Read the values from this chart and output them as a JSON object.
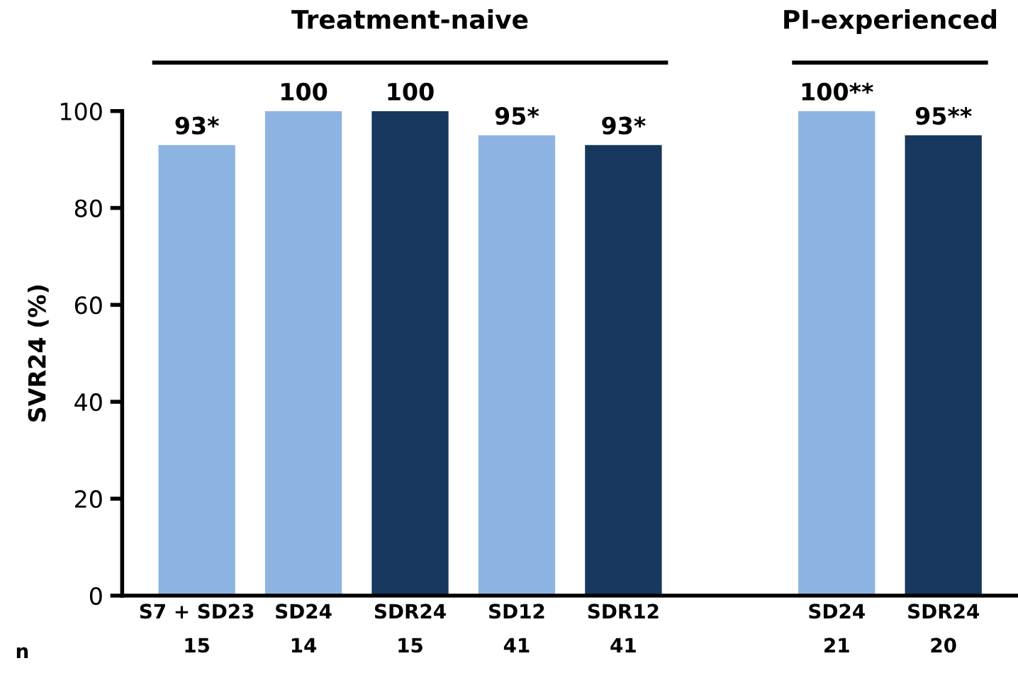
{
  "chart_data": {
    "type": "bar",
    "ylabel": "SVR24 (%)",
    "ylim": [
      0,
      100
    ],
    "yticks": [
      0,
      20,
      40,
      60,
      80,
      100
    ],
    "categories": [
      "S7 + SD23\n15",
      "SD24\n14",
      "SDR24\n15",
      "SD12\n41",
      "SDR12\n41",
      null,
      "SD24\n21",
      "SDR24\n20"
    ],
    "values": [
      93,
      100,
      100,
      95,
      93,
      null,
      100,
      95
    ],
    "colors": [
      "#8db3e2",
      "#8db3e2",
      "#17375e",
      "#8db3e2",
      "#17375e",
      null,
      "#8db3e2",
      "#17375e"
    ],
    "value_labels": [
      "93*",
      "100",
      "100",
      "95*",
      "93*",
      null,
      "100**",
      "95**"
    ],
    "annotations": [
      "Treatment-naive",
      "PI-experienced",
      "n"
    ],
    "grid": false
  }
}
